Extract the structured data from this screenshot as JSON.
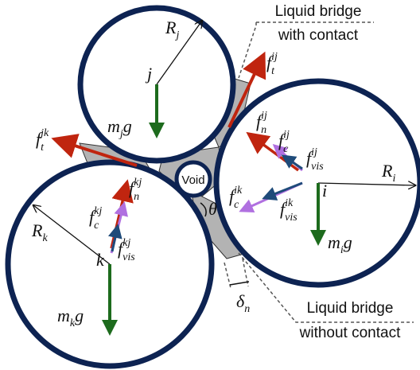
{
  "callouts": {
    "with_contact": [
      "Liquid bridge",
      "with contact"
    ],
    "without_contact": [
      "Liquid bridge",
      "without contact"
    ]
  },
  "void": "Void",
  "labels": [
    {
      "base": "R",
      "sub": "j"
    },
    {
      "base": "j"
    },
    {
      "base": "m",
      "sub": "j",
      "tail": "g"
    },
    {
      "base": "f",
      "sub": "t",
      "sup": "ij"
    },
    {
      "base": "f",
      "sub": "t",
      "sup": "jk"
    },
    {
      "base": "f",
      "sub": "n",
      "sup": "ij"
    },
    {
      "base": "f",
      "sub": "c",
      "sup": "ij"
    },
    {
      "base": "f",
      "sub": "vis",
      "sup": "ij"
    },
    {
      "base": "R",
      "sub": "i"
    },
    {
      "base": "i"
    },
    {
      "base": "f",
      "sub": "c",
      "sup": "ik"
    },
    {
      "base": "f",
      "sub": "vis",
      "sup": "ik"
    },
    {
      "base": "m",
      "sub": "i",
      "tail": "g"
    },
    {
      "base": "R",
      "sub": "k"
    },
    {
      "base": "f",
      "sub": "c",
      "sup": "kj"
    },
    {
      "base": "f",
      "sub": "n",
      "sup": "kj"
    },
    {
      "base": "f",
      "sub": "vis",
      "sup": "kj"
    },
    {
      "base": "k"
    },
    {
      "base": "m",
      "sub": "k",
      "tail": "g"
    },
    {
      "base": "θ"
    },
    {
      "base": "δ",
      "sub": "n"
    }
  ]
}
